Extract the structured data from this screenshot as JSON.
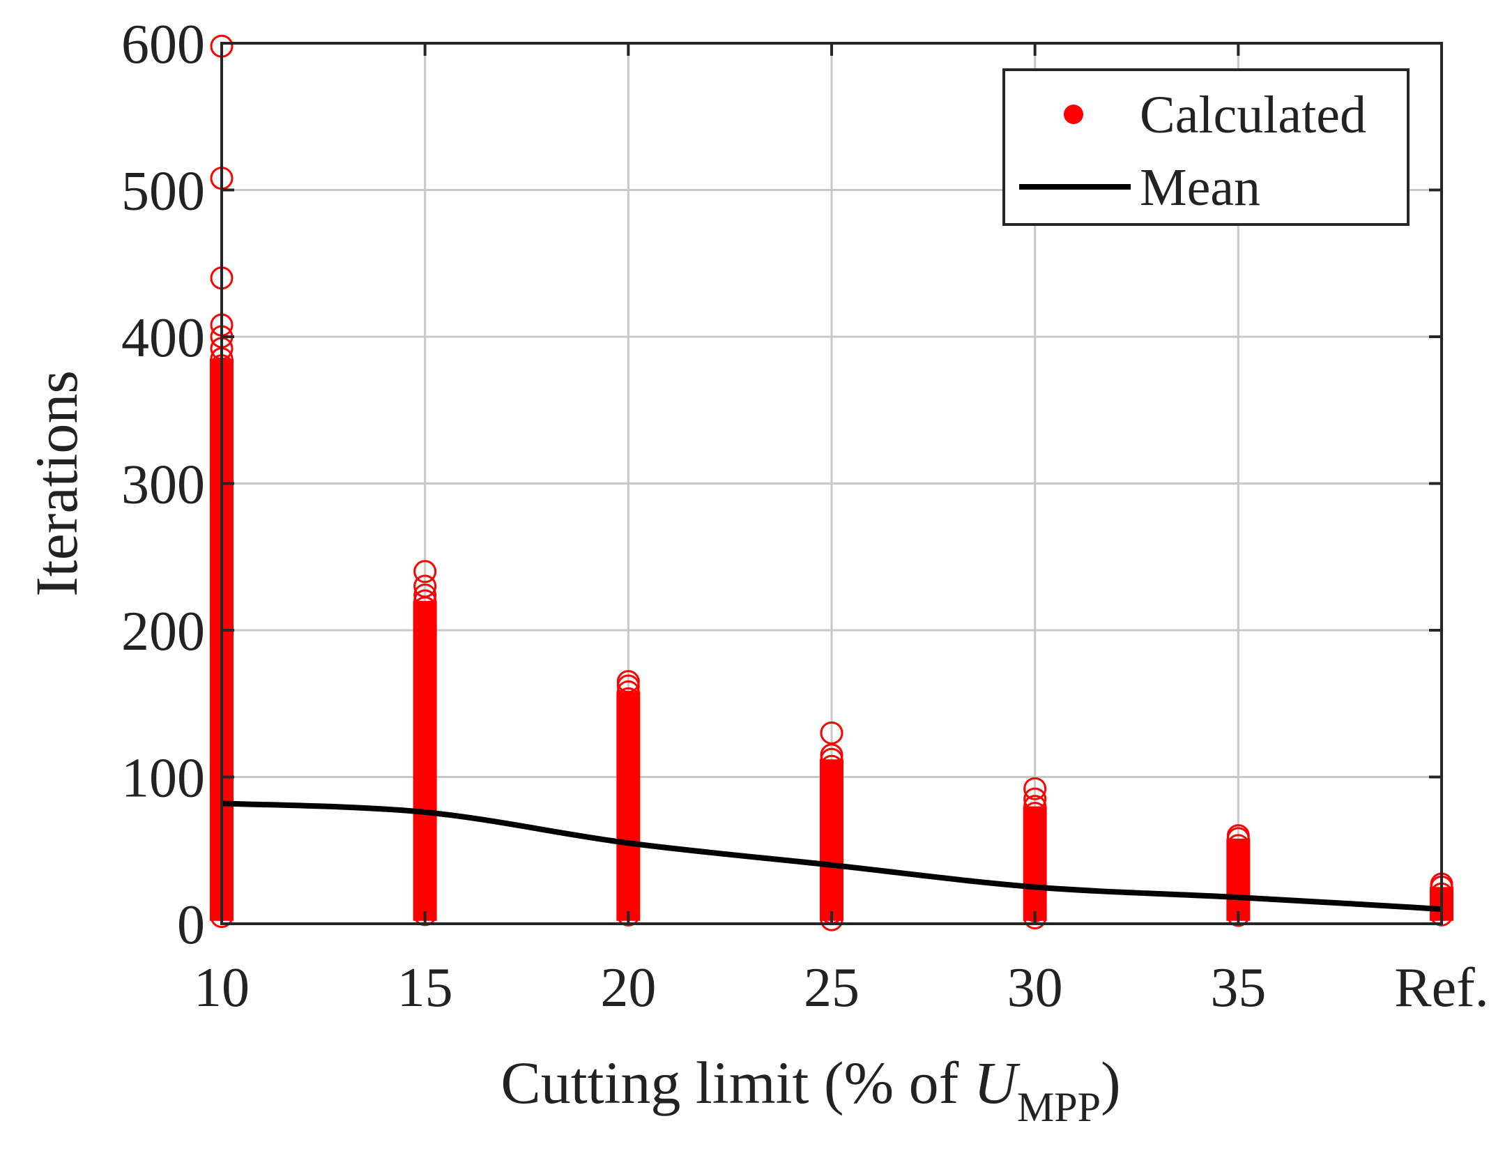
{
  "chart_data": {
    "type": "scatter",
    "categories": [
      "10",
      "15",
      "20",
      "25",
      "30",
      "35",
      "Ref."
    ],
    "xlabel_main": "Cutting limit (% of ",
    "xlabel_symbol": "U",
    "xlabel_subscript": "MPP",
    "xlabel_close": ")",
    "ylabel": "Iterations",
    "ylim": [
      0,
      600
    ],
    "yticks": [
      "0",
      "100",
      "200",
      "300",
      "400",
      "500",
      "600"
    ],
    "grid": true,
    "legend_position": "top-right",
    "colors": {
      "calculated": "#ff0000",
      "mean": "#000000",
      "grid": "#c8c8c8",
      "axis": "#262626"
    },
    "series": [
      {
        "name": "Calculated",
        "kind": "scatter",
        "ranges": [
          {
            "category": "10",
            "min": 2,
            "max": 385
          },
          {
            "category": "15",
            "min": 2,
            "max": 220
          },
          {
            "category": "20",
            "min": 2,
            "max": 158
          },
          {
            "category": "25",
            "min": 2,
            "max": 112
          },
          {
            "category": "30",
            "min": 2,
            "max": 80
          },
          {
            "category": "35",
            "min": 2,
            "max": 58
          },
          {
            "category": "Ref.",
            "min": 2,
            "max": 25
          }
        ],
        "outliers": [
          {
            "category": "10",
            "values": [
              598,
              508,
              440,
              408,
              400,
              392
            ]
          },
          {
            "category": "15",
            "values": [
              240,
              230,
              224
            ]
          },
          {
            "category": "20",
            "values": [
              165,
              162
            ]
          },
          {
            "category": "25",
            "values": [
              130,
              115
            ]
          },
          {
            "category": "30",
            "values": [
              92,
              85
            ]
          },
          {
            "category": "35",
            "values": [
              60
            ]
          },
          {
            "category": "Ref.",
            "values": [
              27
            ]
          }
        ]
      },
      {
        "name": "Mean",
        "kind": "line",
        "values": [
          82,
          76,
          55,
          40,
          25,
          18,
          10
        ]
      }
    ]
  }
}
